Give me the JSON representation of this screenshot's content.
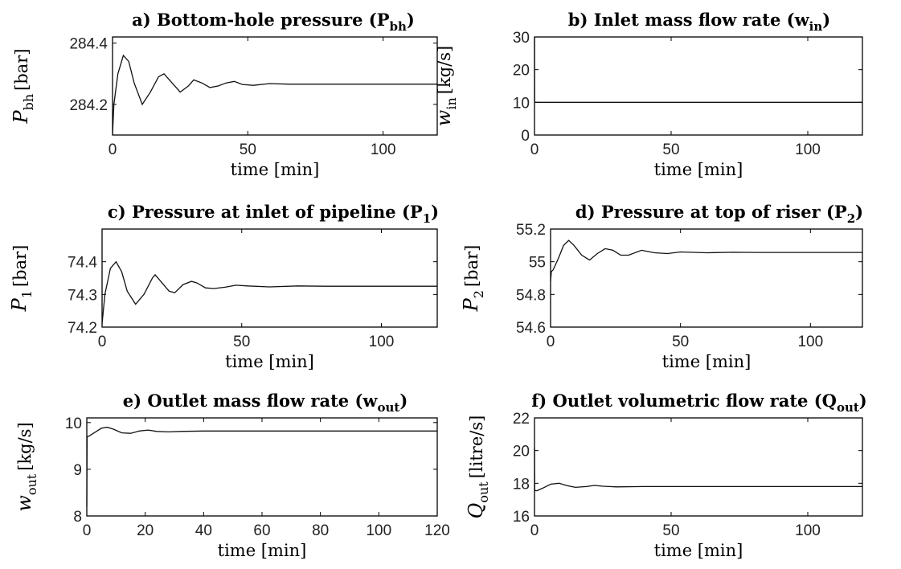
{
  "chart_data": [
    {
      "type": "line",
      "title": "a) Bottom-hole pressure (P",
      "title_sub": "bh",
      "title_end": ")",
      "xlabel": "time [min]",
      "ylabel_sym": "P",
      "ylabel_sub": "bh",
      "ylabel_unit": "[bar]",
      "xlim": [
        0,
        120
      ],
      "ylim": [
        284.1,
        284.42
      ],
      "xticks": [
        0,
        50,
        100
      ],
      "yticks": [
        284.2,
        284.4
      ],
      "ytick_labels": [
        "284.2",
        "284.4"
      ],
      "grid": false,
      "series": [
        {
          "x": [
            0,
            0.5,
            2,
            4,
            6,
            8,
            11,
            14,
            17,
            19,
            22,
            25,
            28,
            30,
            33,
            36,
            39,
            42,
            45,
            48,
            52,
            58,
            65,
            80,
            100,
            120
          ],
          "y": [
            284.1,
            284.2,
            284.3,
            284.36,
            284.34,
            284.27,
            284.2,
            284.24,
            284.29,
            284.3,
            284.27,
            284.24,
            284.26,
            284.28,
            284.27,
            284.255,
            284.26,
            284.27,
            284.275,
            284.265,
            284.262,
            284.268,
            284.266,
            284.266,
            284.266,
            284.266
          ]
        }
      ]
    },
    {
      "type": "line",
      "title": "b) Inlet mass flow rate (w",
      "title_sub": "in",
      "title_end": ")",
      "xlabel": "time [min]",
      "ylabel_sym": "w",
      "ylabel_sub": "in",
      "ylabel_unit": "[kg/s]",
      "xlim": [
        0,
        120
      ],
      "ylim": [
        0,
        30
      ],
      "xticks": [
        0,
        50,
        100
      ],
      "yticks": [
        0,
        10,
        20,
        30
      ],
      "ytick_labels": [
        "0",
        "10",
        "20",
        "30"
      ],
      "grid": false,
      "series": [
        {
          "x": [
            0,
            0.05,
            0.2,
            1,
            120
          ],
          "y": [
            30,
            10,
            10,
            10,
            10
          ]
        }
      ]
    },
    {
      "type": "line",
      "title": "c) Pressure at inlet of pipeline (P",
      "title_sub": "1",
      "title_end": ")",
      "xlabel": "time [min]",
      "ylabel_sym": "P",
      "ylabel_sub": "1",
      "ylabel_unit": "[bar]",
      "xlim": [
        0,
        120
      ],
      "ylim": [
        74.2,
        74.5
      ],
      "xticks": [
        0,
        50,
        100
      ],
      "yticks": [
        74.2,
        74.3,
        74.4
      ],
      "ytick_labels": [
        "74.2",
        "74.3",
        "74.4"
      ],
      "grid": false,
      "series": [
        {
          "x": [
            0,
            1,
            3,
            5,
            7,
            9,
            12,
            15,
            18,
            19,
            21,
            24,
            26,
            29,
            32,
            34,
            37,
            40,
            44,
            48,
            52,
            60,
            70,
            80,
            100,
            120
          ],
          "y": [
            74.21,
            74.3,
            74.38,
            74.4,
            74.37,
            74.31,
            74.27,
            74.3,
            74.35,
            74.36,
            74.34,
            74.31,
            74.305,
            74.33,
            74.34,
            74.335,
            74.32,
            74.318,
            74.322,
            74.328,
            74.326,
            74.323,
            74.326,
            74.325,
            74.325,
            74.325
          ]
        }
      ]
    },
    {
      "type": "line",
      "title": "d) Pressure at top of riser (P",
      "title_sub": "2",
      "title_end": ")",
      "xlabel": "time [min]",
      "ylabel_sym": "P",
      "ylabel_sub": "2",
      "ylabel_unit": "[bar]",
      "xlim": [
        0,
        120
      ],
      "ylim": [
        54.6,
        55.2
      ],
      "xticks": [
        0,
        50,
        100
      ],
      "yticks": [
        54.6,
        54.8,
        55,
        55.2
      ],
      "ytick_labels": [
        "54.6",
        "54.8",
        "55",
        "55.2"
      ],
      "grid": false,
      "series": [
        {
          "x": [
            0,
            0.3,
            1,
            3,
            5,
            7,
            9,
            12,
            15,
            18,
            21,
            24,
            27,
            30,
            35,
            40,
            45,
            50,
            60,
            70,
            80,
            100,
            120
          ],
          "y": [
            54.88,
            54.94,
            54.95,
            55.02,
            55.1,
            55.13,
            55.1,
            55.04,
            55.01,
            55.05,
            55.08,
            55.07,
            55.04,
            55.04,
            55.07,
            55.055,
            55.05,
            55.06,
            55.055,
            55.058,
            55.057,
            55.057,
            55.057
          ]
        }
      ]
    },
    {
      "type": "line",
      "title": "e) Outlet mass flow rate (w",
      "title_sub": "out",
      "title_end": ")",
      "xlabel": "time [min]",
      "ylabel_sym": "w",
      "ylabel_sub": "out",
      "ylabel_unit": "[kg/s]",
      "xlim": [
        0,
        120
      ],
      "ylim": [
        8,
        10.1
      ],
      "xticks": [
        0,
        20,
        40,
        60,
        80,
        100,
        120
      ],
      "yticks": [
        8,
        9,
        10
      ],
      "ytick_labels": [
        "8",
        "9",
        "10"
      ],
      "grid": false,
      "series": [
        {
          "x": [
            0,
            0.1,
            0.4,
            1,
            3,
            5,
            7,
            9,
            12,
            15,
            18,
            21,
            24,
            28,
            32,
            40,
            50,
            60,
            80,
            100,
            120
          ],
          "y": [
            8.2,
            9.7,
            9.7,
            9.72,
            9.8,
            9.88,
            9.9,
            9.86,
            9.78,
            9.77,
            9.82,
            9.84,
            9.81,
            9.8,
            9.81,
            9.82,
            9.82,
            9.82,
            9.82,
            9.82,
            9.82
          ]
        }
      ]
    },
    {
      "type": "line",
      "title": "f) Outlet volumetric flow rate (Q",
      "title_sub": "out",
      "title_end": ")",
      "xlabel": "time [min]",
      "ylabel_sym": "Q",
      "ylabel_sub": "out",
      "ylabel_unit": "[litre/s]",
      "xlim": [
        0,
        120
      ],
      "ylim": [
        16,
        22
      ],
      "xticks": [
        0,
        50,
        100
      ],
      "yticks": [
        16,
        18,
        20,
        22
      ],
      "ytick_labels": [
        "16",
        "18",
        "20",
        "22"
      ],
      "grid": false,
      "series": [
        {
          "x": [
            0,
            0.1,
            0.3,
            1,
            3,
            6,
            9,
            12,
            15,
            19,
            22,
            25,
            30,
            40,
            50,
            60,
            80,
            100,
            120
          ],
          "y": [
            20.2,
            17.6,
            17.55,
            17.55,
            17.7,
            17.95,
            18.0,
            17.85,
            17.75,
            17.8,
            17.87,
            17.82,
            17.78,
            17.8,
            17.8,
            17.8,
            17.8,
            17.8,
            17.8
          ]
        }
      ]
    }
  ]
}
